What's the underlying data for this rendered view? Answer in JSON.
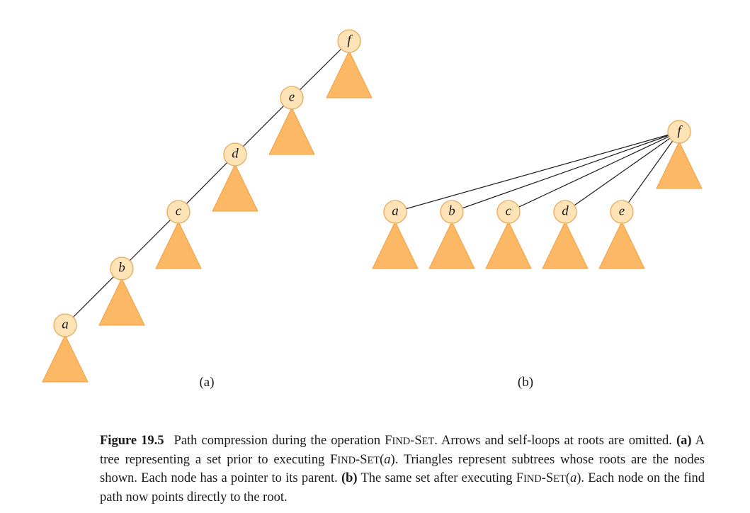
{
  "panels": [
    {
      "label": "(a)",
      "nodes": [
        {
          "id": "a",
          "label": "a"
        },
        {
          "id": "b",
          "label": "b"
        },
        {
          "id": "c",
          "label": "c"
        },
        {
          "id": "d",
          "label": "d"
        },
        {
          "id": "e",
          "label": "e"
        },
        {
          "id": "f",
          "label": "f"
        }
      ],
      "edges": [
        [
          "a",
          "b"
        ],
        [
          "b",
          "c"
        ],
        [
          "c",
          "d"
        ],
        [
          "d",
          "e"
        ],
        [
          "e",
          "f"
        ]
      ]
    },
    {
      "label": "(b)",
      "nodes": [
        {
          "id": "a",
          "label": "a"
        },
        {
          "id": "b",
          "label": "b"
        },
        {
          "id": "c",
          "label": "c"
        },
        {
          "id": "d",
          "label": "d"
        },
        {
          "id": "e",
          "label": "e"
        },
        {
          "id": "f",
          "label": "f"
        }
      ],
      "edges": [
        [
          "a",
          "f"
        ],
        [
          "b",
          "f"
        ],
        [
          "c",
          "f"
        ],
        [
          "d",
          "f"
        ],
        [
          "e",
          "f"
        ]
      ]
    }
  ],
  "colors": {
    "triangle_fill": "#fdb865",
    "node_fill": "#fde3b5",
    "node_stroke": "#e8a95a",
    "edge": "#1a1a1a"
  },
  "caption": {
    "figure_number": "Figure 19.5",
    "text1": "Path compression during the operation ",
    "findset_big1": "F",
    "findset_small1": "IND",
    "findset_dash": "-",
    "findset_big2": "S",
    "findset_small2": "ET",
    "text2": ". Arrows and self-loops at roots are omitted. ",
    "part_a": "(a)",
    "text3": " A tree representing a set prior to executing ",
    "arg": "a",
    "text4": ". Triangles represent subtrees whose roots are the nodes shown. Each node has a pointer to its parent. ",
    "part_b": "(b)",
    "text5": " The same set after executing ",
    "text6": ". Each node on the find path now points directly to the root."
  }
}
